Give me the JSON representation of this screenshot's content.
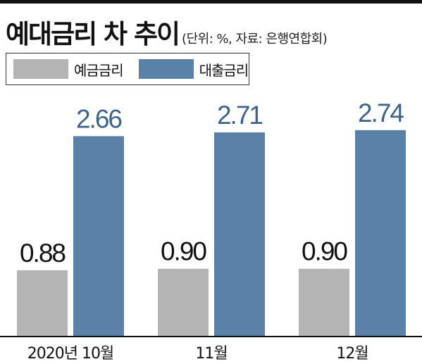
{
  "header": {
    "title": "예대금리 차 추이",
    "subtitle": "(단위: %, 자료: 은행연합회)"
  },
  "colors": {
    "deposit": "#b4b4b4",
    "loan": "#5b80a8",
    "loan_label": "#3e628e",
    "deposit_label": "#111111",
    "baseline": "#111111"
  },
  "chart_data": {
    "type": "bar",
    "title": "예대금리 차 추이",
    "subtitle": "(단위: %, 자료: 은행연합회)",
    "unit": "%",
    "source": "은행연합회",
    "categories": [
      "2020년 10월",
      "11월",
      "12월"
    ],
    "series": [
      {
        "name": "예금금리",
        "values": [
          0.88,
          0.9,
          0.9
        ]
      },
      {
        "name": "대출금리",
        "values": [
          2.66,
          2.71,
          2.74
        ]
      }
    ],
    "value_labels": [
      [
        "0.88",
        "0.90",
        "0.90"
      ],
      [
        "2.66",
        "2.71",
        "2.74"
      ]
    ],
    "ylim": [
      0,
      3.5
    ],
    "legend": "top-left",
    "grid": false
  }
}
